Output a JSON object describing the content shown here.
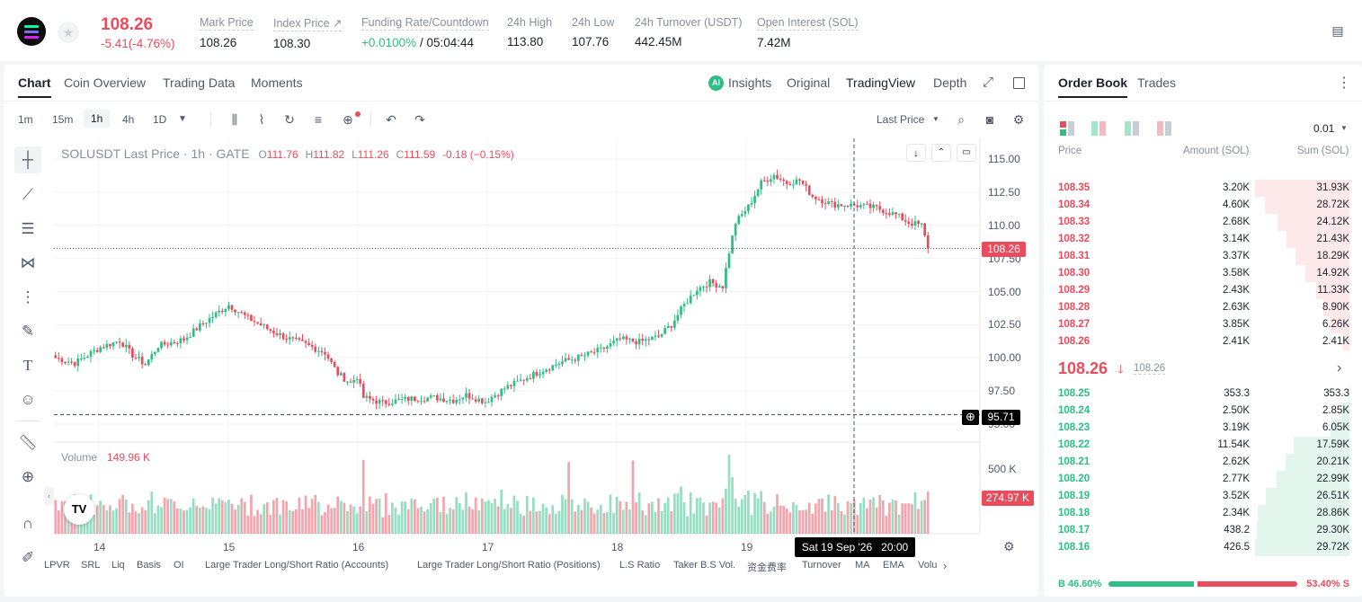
{
  "header": {
    "last_price": "108.26",
    "change": "-5.41(-4.76%)",
    "stats": [
      {
        "label": "Mark Price",
        "value": "108.26"
      },
      {
        "label": "Index Price ↗",
        "value": "108.30"
      },
      {
        "label": "Funding Rate/Countdown",
        "value": "+0.0100%",
        "value2": " / 05:04:44"
      },
      {
        "label": "24h High",
        "value": "113.80"
      },
      {
        "label": "24h Low",
        "value": "107.76"
      },
      {
        "label": "24h Turnover (USDT)",
        "value": "442.45M"
      },
      {
        "label": "Open Interest (SOL)",
        "value": "7.42M"
      }
    ]
  },
  "chart_tabs": [
    "Chart",
    "Coin Overview",
    "Trading Data",
    "Moments"
  ],
  "view_tabs": [
    "Insights",
    "Original",
    "TradingView",
    "Depth"
  ],
  "timeframes": [
    "1m",
    "15m",
    "1h",
    "4h",
    "1D"
  ],
  "last_price_menu": "Last Price",
  "legend": {
    "symbol": "SOLUSDT Last Price · 1h · GATE",
    "o_label": "O",
    "o": "111.76",
    "h_label": "H",
    "h": "111.82",
    "l_label": "L",
    "l": "111.26",
    "c_label": "C",
    "c": "111.59",
    "chg": "-0.18 (−0.15%)"
  },
  "volume": {
    "label": "Volume",
    "value": "149.96 K",
    "axis_label": "500 K",
    "current": "274.97 K"
  },
  "price_tag": "108.26",
  "crosshair_price": "95.71",
  "crosshair_time": "Sat 19 Sep '26   20:00",
  "tv_logo": "TV",
  "y_ticks": [
    "115.00",
    "112.50",
    "110.00",
    "107.50",
    "105.00",
    "102.50",
    "100.00",
    "97.50",
    "95.00"
  ],
  "x_ticks": [
    "14",
    "15",
    "16",
    "17",
    "18",
    "19"
  ],
  "indicators": [
    "LPVR",
    "SRL",
    "Liq",
    "Basis",
    "OI",
    "Large Trader Long/Short Ratio (Accounts)",
    "Large Trader Long/Short Ratio (Positions)",
    "L.S Ratio",
    "Taker B.S Vol.",
    "资金费率",
    "Turnover",
    "MA",
    "EMA",
    "Volu"
  ],
  "colors": {
    "up": "#2ebd85",
    "down": "#e84c5d"
  },
  "orderbook": {
    "tabs": [
      "Order Book",
      "Trades"
    ],
    "precision": "0.01",
    "headers": [
      "Price",
      "Amount (SOL)",
      "Sum (SOL)"
    ],
    "asks": [
      {
        "price": "108.35",
        "amount": "3.20K",
        "sum": "31.93K",
        "depth": 1.0
      },
      {
        "price": "108.34",
        "amount": "4.60K",
        "sum": "28.72K",
        "depth": 0.9
      },
      {
        "price": "108.33",
        "amount": "2.68K",
        "sum": "24.12K",
        "depth": 0.76
      },
      {
        "price": "108.32",
        "amount": "3.14K",
        "sum": "21.43K",
        "depth": 0.67
      },
      {
        "price": "108.31",
        "amount": "3.37K",
        "sum": "18.29K",
        "depth": 0.57
      },
      {
        "price": "108.30",
        "amount": "3.58K",
        "sum": "14.92K",
        "depth": 0.47
      },
      {
        "price": "108.29",
        "amount": "2.43K",
        "sum": "11.33K",
        "depth": 0.35
      },
      {
        "price": "108.28",
        "amount": "2.63K",
        "sum": "8.90K",
        "depth": 0.28
      },
      {
        "price": "108.27",
        "amount": "3.85K",
        "sum": "6.26K",
        "depth": 0.2
      },
      {
        "price": "108.26",
        "amount": "2.41K",
        "sum": "2.41K",
        "depth": 0.08
      }
    ],
    "mid_price": "108.26",
    "mid_arrow": "🡓",
    "mark": "108.26",
    "bids": [
      {
        "price": "108.25",
        "amount": "353.3",
        "sum": "353.3",
        "depth": 0.01
      },
      {
        "price": "108.24",
        "amount": "2.50K",
        "sum": "2.85K",
        "depth": 0.09
      },
      {
        "price": "108.23",
        "amount": "3.19K",
        "sum": "6.05K",
        "depth": 0.2
      },
      {
        "price": "108.22",
        "amount": "11.54K",
        "sum": "17.59K",
        "depth": 0.59
      },
      {
        "price": "108.21",
        "amount": "2.62K",
        "sum": "20.21K",
        "depth": 0.68
      },
      {
        "price": "108.20",
        "amount": "2.77K",
        "sum": "22.99K",
        "depth": 0.77
      },
      {
        "price": "108.19",
        "amount": "3.52K",
        "sum": "26.51K",
        "depth": 0.89
      },
      {
        "price": "108.18",
        "amount": "2.34K",
        "sum": "28.86K",
        "depth": 0.97
      },
      {
        "price": "108.17",
        "amount": "438.2",
        "sum": "29.30K",
        "depth": 0.98
      },
      {
        "price": "108.16",
        "amount": "426.5",
        "sum": "29.72K",
        "depth": 1.0
      }
    ],
    "buy_ratio": 46.6,
    "buy_pct": "B 46.60%",
    "sell_pct": "53.40% S"
  },
  "chart_data": {
    "type": "candlestick",
    "title": "SOLUSDT Last Price · 1h · GATE",
    "ylim": [
      95,
      115
    ],
    "x_ticks": [
      "14",
      "15",
      "16",
      "17",
      "18",
      "19"
    ],
    "waypoints": [
      [
        0,
        100.0
      ],
      [
        6,
        99.6
      ],
      [
        14,
        100.8
      ],
      [
        20,
        101.3
      ],
      [
        24,
        100.2
      ],
      [
        28,
        99.5
      ],
      [
        32,
        100.9
      ],
      [
        40,
        101.4
      ],
      [
        46,
        102.6
      ],
      [
        50,
        103.3
      ],
      [
        54,
        104.0
      ],
      [
        60,
        103.0
      ],
      [
        66,
        102.2
      ],
      [
        72,
        101.5
      ],
      [
        78,
        101.0
      ],
      [
        84,
        100.4
      ],
      [
        88,
        98.8
      ],
      [
        92,
        98.1
      ],
      [
        94,
        98.6
      ],
      [
        96,
        97.0
      ],
      [
        102,
        96.6
      ],
      [
        110,
        96.9
      ],
      [
        118,
        97.0
      ],
      [
        124,
        96.8
      ],
      [
        128,
        97.2
      ],
      [
        134,
        96.7
      ],
      [
        140,
        97.7
      ],
      [
        146,
        98.4
      ],
      [
        152,
        99.1
      ],
      [
        158,
        99.7
      ],
      [
        164,
        100.1
      ],
      [
        170,
        100.6
      ],
      [
        176,
        101.4
      ],
      [
        182,
        101.2
      ],
      [
        188,
        101.6
      ],
      [
        192,
        102.5
      ],
      [
        196,
        104.0
      ],
      [
        200,
        105.2
      ],
      [
        204,
        105.7
      ],
      [
        208,
        105.4
      ],
      [
        210,
        108.0
      ],
      [
        212,
        110.2
      ],
      [
        216,
        111.4
      ],
      [
        220,
        113.2
      ],
      [
        224,
        113.8
      ],
      [
        228,
        113.2
      ],
      [
        232,
        113.4
      ],
      [
        236,
        112.2
      ],
      [
        242,
        111.6
      ],
      [
        250,
        111.5
      ],
      [
        256,
        111.3
      ],
      [
        262,
        110.8
      ],
      [
        266,
        110.2
      ],
      [
        270,
        110.0
      ],
      [
        272,
        108.26
      ]
    ]
  }
}
